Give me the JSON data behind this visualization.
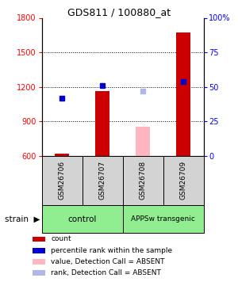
{
  "title": "GDS811 / 100880_at",
  "samples": [
    "GSM26706",
    "GSM26707",
    "GSM26708",
    "GSM26709"
  ],
  "group_positions": [
    [
      0,
      2,
      "control"
    ],
    [
      2,
      4,
      "APPSw transgenic"
    ]
  ],
  "group_color": "#90ee90",
  "ylim_left": [
    600,
    1800
  ],
  "ylim_right": [
    0,
    100
  ],
  "yticks_left": [
    600,
    900,
    1200,
    1500,
    1800
  ],
  "yticks_right": [
    0,
    25,
    50,
    75,
    100
  ],
  "yticklabels_right": [
    "0",
    "25",
    "50",
    "75",
    "100%"
  ],
  "bar_color": "#cc0000",
  "bar_color_absent": "#ffb6c1",
  "dot_color_present": "#0000cc",
  "dot_color_absent": "#b0b8e8",
  "bars": [
    {
      "value": 620,
      "absent": false
    },
    {
      "value": 1165,
      "absent": false
    },
    {
      "value": 855,
      "absent": true
    },
    {
      "value": 1670,
      "absent": false
    }
  ],
  "dots": [
    {
      "pct": 42,
      "absent": false
    },
    {
      "pct": 51,
      "absent": false
    },
    {
      "pct": 47,
      "absent": true
    },
    {
      "pct": 54,
      "absent": false
    }
  ],
  "bar_width": 0.35,
  "sample_box_color": "#d3d3d3",
  "legend_items": [
    {
      "label": "count",
      "color": "#cc0000"
    },
    {
      "label": "percentile rank within the sample",
      "color": "#0000cc"
    },
    {
      "label": "value, Detection Call = ABSENT",
      "color": "#ffb6c1"
    },
    {
      "label": "rank, Detection Call = ABSENT",
      "color": "#b0b8e8"
    }
  ]
}
